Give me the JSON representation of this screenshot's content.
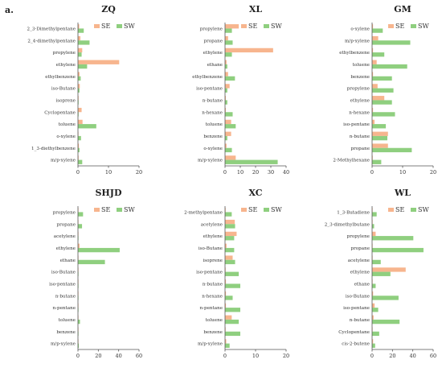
{
  "figure_label": "a.",
  "colors": {
    "SE": "#f7b58e",
    "SW": "#8fcf7f",
    "axis": "#555555"
  },
  "chart_data": [
    {
      "type": "bar",
      "orientation": "horizontal",
      "title": "ZQ",
      "categories": [
        "2_3-Dimethylpentane",
        "2_4-dimethylpentane",
        "propylene",
        "ethylene",
        "ethylbenzene",
        "iso-Butane",
        "isoprene",
        "Cyclopentane",
        "toluene",
        "o-xylene",
        "1_3-diethylbenzene",
        "m/p-xylene"
      ],
      "series": [
        {
          "name": "SE",
          "values": [
            0.4,
            0.8,
            1.4,
            13.5,
            0.5,
            0.6,
            0.2,
            1.2,
            1.5,
            0.1,
            0.3,
            0.2
          ]
        },
        {
          "name": "SW",
          "values": [
            1.9,
            3.8,
            1.2,
            3.0,
            0.9,
            0.5,
            0.2,
            0.2,
            6.0,
            1.0,
            0.5,
            1.4
          ]
        }
      ],
      "xlim": [
        0,
        20
      ],
      "xticks": [
        0,
        10,
        20
      ],
      "legend": "top-right"
    },
    {
      "type": "bar",
      "orientation": "horizontal",
      "title": "XL",
      "categories": [
        "propylene",
        "propane",
        "ethylene",
        "ethane",
        "ethylbenzene",
        "iso-pentane",
        "n-butane",
        "n-hexane",
        "toluene",
        "benzene",
        "o-xylene",
        "m/p-xylene"
      ],
      "series": [
        {
          "name": "SE",
          "values": [
            9.0,
            2.0,
            31.5,
            1.0,
            2.0,
            3.0,
            0.5,
            0.5,
            4.0,
            4.0,
            1.0,
            7.0
          ]
        },
        {
          "name": "SW",
          "values": [
            4.5,
            5.0,
            4.5,
            1.5,
            6.5,
            1.5,
            1.5,
            5.0,
            7.0,
            1.5,
            4.5,
            34.5
          ]
        }
      ],
      "xlim": [
        0,
        40
      ],
      "xticks": [
        0,
        10,
        20,
        30,
        40
      ],
      "legend": "top-right"
    },
    {
      "type": "bar",
      "orientation": "horizontal",
      "title": "GM",
      "categories": [
        "o-xylene",
        "m/p-xylene",
        "ethylbenzene",
        "toluene",
        "benzene",
        "propylene",
        "ethylene",
        "n-hexane",
        "iso-pentane",
        "n-butane",
        "propane",
        "2-Methylhexane"
      ],
      "series": [
        {
          "name": "SE",
          "values": [
            0.3,
            2.0,
            0.3,
            1.5,
            0.3,
            1.8,
            4.0,
            0.3,
            0.8,
            5.2,
            5.2,
            0.2
          ]
        },
        {
          "name": "SW",
          "values": [
            3.5,
            12.5,
            4.0,
            11.5,
            6.5,
            7.0,
            6.5,
            7.5,
            4.5,
            5.0,
            13.0,
            3.0
          ]
        }
      ],
      "xlim": [
        0,
        20
      ],
      "xticks": [
        0,
        10,
        20
      ],
      "legend": "top-right"
    },
    {
      "type": "bar",
      "orientation": "horizontal",
      "title": "SHJD",
      "categories": [
        "propylene",
        "propane",
        "acetylene",
        "ethylene",
        "ethane",
        "iso-Butane",
        "iso-pentane",
        "n-butane",
        "n-pentane",
        "toluene",
        "benzene",
        "m/p-xylene"
      ],
      "series": [
        {
          "name": "SE",
          "values": [
            0.2,
            0.3,
            0.1,
            1.5,
            0.2,
            0.1,
            0.1,
            0.1,
            0.1,
            0.1,
            0.1,
            0.1
          ]
        },
        {
          "name": "SW",
          "values": [
            5.0,
            4.0,
            0.5,
            41.0,
            26.5,
            0.5,
            0.5,
            0.5,
            0.5,
            2.0,
            0.5,
            0.8
          ]
        }
      ],
      "xlim": [
        0,
        60
      ],
      "xticks": [
        0,
        20,
        40,
        60
      ],
      "legend": "top-right"
    },
    {
      "type": "bar",
      "orientation": "horizontal",
      "title": "XC",
      "categories": [
        "2-methylpentane",
        "acetylene",
        "ethylene",
        "iso-Butane",
        "isoprene",
        "iso-pentane",
        "n-butane",
        "n-hexane",
        "n-pentane",
        "toluene",
        "benzene",
        "m/p-xylene"
      ],
      "series": [
        {
          "name": "SE",
          "values": [
            0.2,
            3.2,
            3.8,
            0.5,
            2.5,
            0.2,
            0.3,
            0.3,
            0.3,
            2.2,
            0.2,
            0.4
          ]
        },
        {
          "name": "SW",
          "values": [
            2.2,
            3.3,
            3.0,
            3.0,
            3.3,
            4.5,
            5.0,
            2.5,
            5.0,
            4.5,
            5.0,
            1.5
          ]
        }
      ],
      "xlim": [
        0,
        20
      ],
      "xticks": [
        0,
        10,
        20
      ],
      "legend": "top-right"
    },
    {
      "type": "bar",
      "orientation": "horizontal",
      "title": "WL",
      "categories": [
        "1_3-Butadiene",
        "2_3-dimethylbutane",
        "propylene",
        "propane",
        "acetylene",
        "ethylene",
        "ethane",
        "iso-Butane",
        "iso-pentane",
        "n-butane",
        "Cyclopentane",
        "cis-2-butene"
      ],
      "series": [
        {
          "name": "SE",
          "values": [
            0.5,
            0.5,
            3.5,
            0.5,
            0.5,
            33.0,
            0.5,
            1.0,
            2.5,
            1.5,
            0.5,
            1.0
          ]
        },
        {
          "name": "SW",
          "values": [
            4.5,
            2.0,
            40.5,
            50.5,
            8.5,
            18.0,
            3.5,
            26.0,
            6.0,
            27.0,
            7.0,
            3.0
          ]
        }
      ],
      "xlim": [
        0,
        60
      ],
      "xticks": [
        0,
        20,
        40,
        60
      ],
      "legend": "top-right"
    }
  ]
}
